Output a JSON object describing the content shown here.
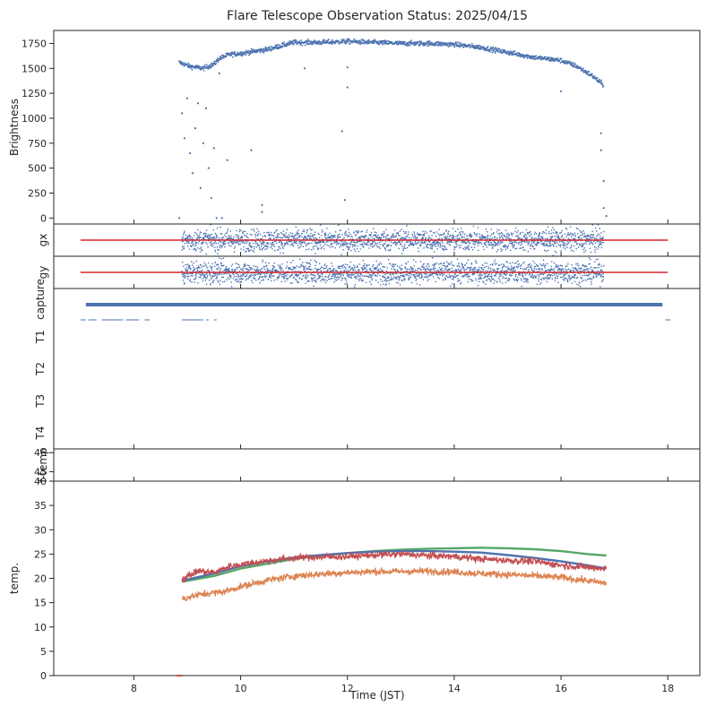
{
  "chart_data": {
    "type": "scatter",
    "title": "Flare Telescope Observation Status: 2025/04/15",
    "xlabel": "Time (JST)",
    "xlim": [
      6.5,
      18.6
    ],
    "xticks": [
      8,
      10,
      12,
      14,
      16,
      18
    ],
    "colors": {
      "blue": "#4c72b0",
      "orange": "#dd8452",
      "green": "#55a868",
      "red": "#c44e52",
      "line": "#d62728",
      "axis": "#262626"
    },
    "panels": [
      {
        "id": "brightness",
        "ylabel": "Brightness",
        "ylim": [
          -60,
          1880
        ],
        "yticks": [
          0,
          250,
          500,
          750,
          1000,
          1250,
          1500,
          1750
        ],
        "series": [
          {
            "color": "#4c72b0",
            "kind": "points",
            "curve": [
              [
                8.85,
                1560
              ],
              [
                9.05,
                1520
              ],
              [
                9.3,
                1500
              ],
              [
                9.5,
                1540
              ],
              [
                9.6,
                1600
              ],
              [
                9.8,
                1640
              ],
              [
                10.0,
                1650
              ],
              [
                10.5,
                1690
              ],
              [
                11.0,
                1760
              ],
              [
                11.5,
                1760
              ],
              [
                12.0,
                1770
              ],
              [
                12.5,
                1760
              ],
              [
                13.0,
                1750
              ],
              [
                13.5,
                1750
              ],
              [
                14.0,
                1740
              ],
              [
                14.5,
                1710
              ],
              [
                15.0,
                1660
              ],
              [
                15.5,
                1610
              ],
              [
                16.0,
                1580
              ],
              [
                16.3,
                1520
              ],
              [
                16.6,
                1420
              ],
              [
                16.8,
                1330
              ]
            ],
            "outliers": [
              [
                8.85,
                0
              ],
              [
                8.9,
                1050
              ],
              [
                8.95,
                800
              ],
              [
                9.0,
                1200
              ],
              [
                9.05,
                650
              ],
              [
                9.1,
                450
              ],
              [
                9.15,
                900
              ],
              [
                9.2,
                1150
              ],
              [
                9.25,
                300
              ],
              [
                9.3,
                750
              ],
              [
                9.35,
                1100
              ],
              [
                9.4,
                500
              ],
              [
                9.45,
                200
              ],
              [
                9.5,
                700
              ],
              [
                9.55,
                0
              ],
              [
                9.6,
                1450
              ],
              [
                9.65,
                0
              ],
              [
                9.75,
                580
              ],
              [
                10.2,
                680
              ],
              [
                10.4,
                130
              ],
              [
                10.4,
                60
              ],
              [
                11.2,
                1500
              ],
              [
                11.9,
                870
              ],
              [
                11.95,
                180
              ],
              [
                12.0,
                1510
              ],
              [
                12.0,
                1310
              ],
              [
                16.0,
                1270
              ],
              [
                16.75,
                850
              ],
              [
                16.75,
                680
              ],
              [
                16.8,
                370
              ],
              [
                16.8,
                100
              ],
              [
                16.85,
                20
              ]
            ]
          }
        ]
      },
      {
        "id": "gx",
        "ylabel": "gx",
        "ylim": [
          -1,
          1
        ],
        "series": [
          {
            "color": "#4c72b0",
            "kind": "noise",
            "xrange": [
              8.9,
              16.8
            ],
            "sigma": 0.33
          },
          {
            "color": "#d62728",
            "kind": "hline",
            "y": 0,
            "xrange": [
              7.0,
              18.0
            ]
          }
        ]
      },
      {
        "id": "gy",
        "ylabel": "gy",
        "ylim": [
          -1,
          1
        ],
        "series": [
          {
            "color": "#4c72b0",
            "kind": "noise",
            "xrange": [
              8.9,
              16.8
            ],
            "sigma": 0.33
          },
          {
            "color": "#d62728",
            "kind": "hline",
            "y": 0,
            "xrange": [
              7.0,
              18.0
            ]
          }
        ]
      },
      {
        "id": "status",
        "ylabels": [
          "capture",
          "T1",
          "T2",
          "T3",
          "T4"
        ],
        "series": [
          {
            "color": "#4c72b0",
            "kind": "bar",
            "row": "capture",
            "xrange": [
              7.1,
              17.9
            ]
          },
          {
            "color": "#4c72b0",
            "kind": "dashes",
            "row": "T1",
            "segments": [
              [
                7.0,
                7.1
              ],
              [
                7.15,
                7.3
              ],
              [
                7.4,
                7.8
              ],
              [
                7.85,
                8.1
              ],
              [
                8.2,
                8.3
              ],
              [
                8.9,
                9.3
              ],
              [
                9.35,
                9.4
              ],
              [
                9.5,
                9.55
              ],
              [
                17.95,
                18.05
              ]
            ]
          }
        ]
      },
      {
        "id": "ftemp",
        "ylabel": "f-temp",
        "ylim": [
          44.5,
          46.2
        ],
        "yticks": [
          45,
          46
        ],
        "series": []
      },
      {
        "id": "temp",
        "ylabel": "temp.",
        "ylim": [
          0,
          40
        ],
        "yticks": [
          0,
          5,
          10,
          15,
          20,
          25,
          30,
          35,
          40
        ],
        "series": [
          {
            "color": "#55a868",
            "kind": "line",
            "points": [
              [
                8.9,
                19.3
              ],
              [
                9.5,
                20.5
              ],
              [
                10.0,
                22.0
              ],
              [
                10.5,
                23.0
              ],
              [
                11.0,
                24.0
              ],
              [
                11.5,
                24.7
              ],
              [
                12.0,
                25.2
              ],
              [
                12.5,
                25.6
              ],
              [
                13.0,
                25.9
              ],
              [
                13.5,
                26.1
              ],
              [
                14.0,
                26.2
              ],
              [
                14.5,
                26.3
              ],
              [
                15.0,
                26.2
              ],
              [
                15.5,
                26.0
              ],
              [
                16.0,
                25.6
              ],
              [
                16.5,
                25.0
              ],
              [
                16.85,
                24.7
              ]
            ]
          },
          {
            "color": "#4c72b0",
            "kind": "line",
            "points": [
              [
                8.9,
                19.5
              ],
              [
                9.5,
                21.0
              ],
              [
                10.0,
                22.5
              ],
              [
                10.5,
                23.5
              ],
              [
                11.0,
                24.3
              ],
              [
                11.5,
                24.8
              ],
              [
                12.0,
                25.2
              ],
              [
                12.5,
                25.5
              ],
              [
                13.0,
                25.6
              ],
              [
                13.5,
                25.6
              ],
              [
                14.0,
                25.5
              ],
              [
                14.5,
                25.3
              ],
              [
                15.0,
                24.8
              ],
              [
                15.5,
                24.2
              ],
              [
                16.0,
                23.5
              ],
              [
                16.5,
                22.7
              ],
              [
                16.85,
                22.0
              ]
            ]
          },
          {
            "color": "#c44e52",
            "kind": "noisyline",
            "points": [
              [
                8.9,
                19.8
              ],
              [
                9.2,
                21.5
              ],
              [
                9.5,
                21.2
              ],
              [
                9.8,
                22.5
              ],
              [
                10.2,
                23.2
              ],
              [
                10.8,
                24.0
              ],
              [
                11.2,
                24.3
              ],
              [
                11.6,
                24.4
              ],
              [
                12.0,
                24.5
              ],
              [
                12.5,
                24.8
              ],
              [
                13.0,
                25.0
              ],
              [
                13.5,
                24.7
              ],
              [
                14.0,
                24.5
              ],
              [
                14.5,
                24.0
              ],
              [
                15.0,
                23.7
              ],
              [
                15.5,
                23.5
              ],
              [
                16.0,
                22.7
              ],
              [
                16.5,
                22.3
              ],
              [
                16.85,
                22.0
              ]
            ]
          },
          {
            "color": "#dd8452",
            "kind": "noisyline",
            "points": [
              [
                8.9,
                15.8
              ],
              [
                9.3,
                16.8
              ],
              [
                9.7,
                17.3
              ],
              [
                10.0,
                18.3
              ],
              [
                10.5,
                19.6
              ],
              [
                11.0,
                20.5
              ],
              [
                11.5,
                20.9
              ],
              [
                12.0,
                21.2
              ],
              [
                12.5,
                21.4
              ],
              [
                13.0,
                21.4
              ],
              [
                13.5,
                21.5
              ],
              [
                14.0,
                21.3
              ],
              [
                14.5,
                21.0
              ],
              [
                15.0,
                20.8
              ],
              [
                15.5,
                20.5
              ],
              [
                16.0,
                20.2
              ],
              [
                16.5,
                19.5
              ],
              [
                16.85,
                19.0
              ]
            ]
          }
        ]
      }
    ]
  }
}
